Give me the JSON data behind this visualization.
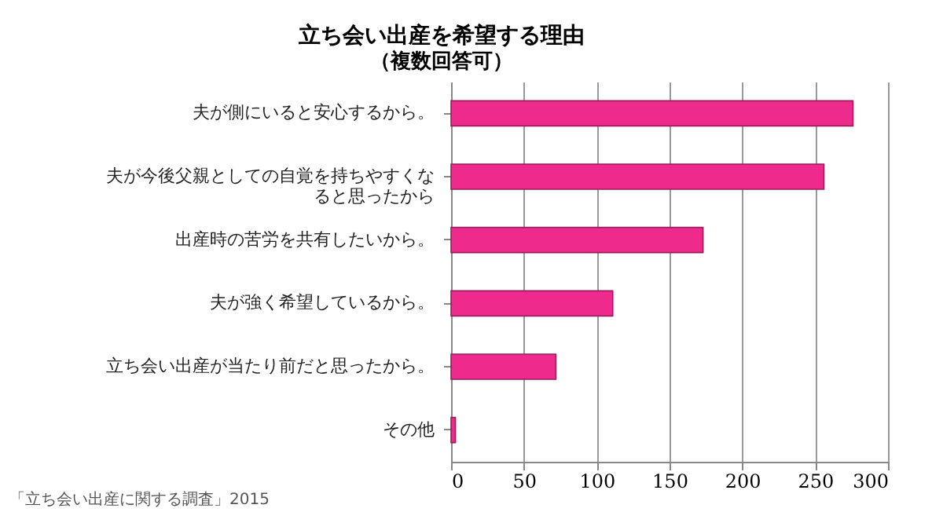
{
  "chart_data": {
    "type": "bar",
    "orientation": "horizontal",
    "title": "立ち会い出産を希望する理由",
    "subtitle": "（複数回答可）",
    "categories": [
      "夫が側にいると安心するから。",
      "夫が今後父親としての自覚を持ちやすくなると思ったから",
      "出産時の苦労を共有したいから。",
      "夫が強く希望しているから。",
      "立ち会い出産が当たり前だと思ったから。",
      "その他"
    ],
    "values": [
      276,
      256,
      173,
      111,
      72,
      3
    ],
    "color": "#ee2b8c",
    "xlim": [
      0,
      300
    ],
    "xticks": [
      0,
      50,
      100,
      150,
      200,
      250,
      300
    ],
    "grid": "x",
    "annotations": [
      "「立ち会い出産に関する調査」2015"
    ]
  }
}
